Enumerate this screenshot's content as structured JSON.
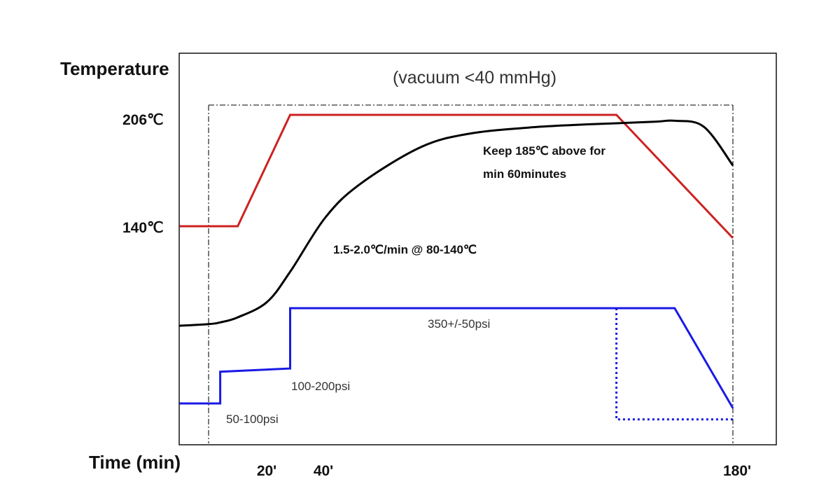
{
  "chart_data": {
    "type": "line",
    "title": "",
    "subtitle": "(vacuum <40 mmHg)",
    "ylabel": "Temperature",
    "xlabel": "Time (min)",
    "x_ticks": [
      "20'",
      "40'",
      "180'"
    ],
    "y_ticks": [
      "140℃",
      "206℃"
    ],
    "xlim": [
      0,
      180
    ],
    "grid": false,
    "legend": "none",
    "colors": {
      "temperature_setpoint": "#cc2222",
      "part_temperature": "#000000",
      "pressure": "#1a1ae6",
      "pressure_release": "#1a1ae6",
      "frame": "#111111"
    },
    "series": [
      {
        "key": "temperature_setpoint",
        "x": [
          -10,
          10,
          28,
          140,
          180
        ],
        "y": [
          140,
          140,
          206,
          206,
          133
        ]
      },
      {
        "key": "part_temperature",
        "x": [
          -10,
          0,
          4,
          10,
          20,
          28,
          40,
          52,
          73,
          90,
          110,
          125,
          140,
          154,
          160,
          170,
          180
        ],
        "y": [
          81,
          82,
          83,
          86,
          95,
          113,
          145,
          165,
          187,
          195,
          198.5,
          200,
          201,
          202,
          202.5,
          199,
          176
        ]
      },
      {
        "key": "pressure",
        "x": [
          -10,
          4,
          4,
          28,
          28,
          160,
          180
        ],
        "y": [
          50,
          50,
          70,
          72,
          110,
          110,
          47
        ]
      },
      {
        "key": "pressure_release",
        "x": [
          140,
          140,
          180
        ],
        "y": [
          110,
          40,
          40
        ]
      }
    ],
    "annotations": [
      "Keep 185℃ above for",
      "min 60minutes",
      "1.5-2.0℃/min @ 80-140℃",
      "350+/-50psi",
      "100-200psi",
      "50-100psi"
    ]
  }
}
